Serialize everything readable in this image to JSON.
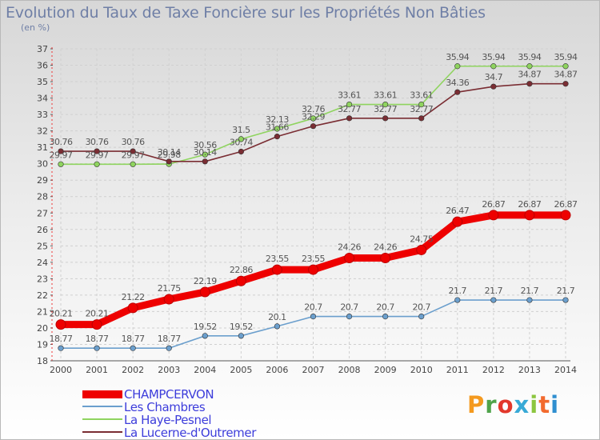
{
  "title": "Evolution du Taux de Taxe Foncière sur les Propriétés Non Bâties",
  "subtitle": "(en %)",
  "brand": {
    "text": "Proxiti",
    "letter_colors": [
      "#f49a1f",
      "#4fa34a",
      "#e2372b",
      "#38a9d6",
      "#8cc63f",
      "#f26a2e",
      "#2f8fd0"
    ]
  },
  "legend": {
    "items": [
      {
        "label": "CHAMPCERVON",
        "color": "#ee0000"
      },
      {
        "label": "Les Chambres",
        "color": "#6b9fcd"
      },
      {
        "label": "La Haye-Pesnel",
        "color": "#8fd45f"
      },
      {
        "label": "La Lucerne-d'Outremer",
        "color": "#7a2d33"
      }
    ]
  },
  "chart_data": {
    "type": "line",
    "x": [
      "2000",
      "2001",
      "2002",
      "2003",
      "2004",
      "2005",
      "2006",
      "2007",
      "2008",
      "2009",
      "2010",
      "2011",
      "2012",
      "2013",
      "2014"
    ],
    "ylim": [
      18,
      37
    ],
    "yticks": [
      18,
      19,
      20,
      21,
      22,
      23,
      24,
      25,
      26,
      27,
      28,
      29,
      30,
      31,
      32,
      33,
      34,
      35,
      36,
      37
    ],
    "grid": true,
    "series": [
      {
        "name": "CHAMPCERVON",
        "color": "#ee0000",
        "labels": [
          "20.21",
          "20.21",
          "21.22",
          "21.75",
          "22.19",
          "22.86",
          "23.55",
          "23.55",
          "24.26",
          "24.26",
          "24.75",
          "26.47",
          "26.87",
          "26.87",
          "26.87"
        ],
        "values": [
          20.21,
          20.21,
          21.22,
          21.75,
          22.19,
          22.86,
          23.55,
          23.55,
          24.26,
          24.26,
          24.75,
          26.47,
          26.87,
          26.87,
          26.87
        ]
      },
      {
        "name": "Les Chambres",
        "color": "#6b9fcd",
        "labels": [
          "18.77",
          "18.77",
          "18.77",
          "18.77",
          "19.52",
          "19.52",
          "20.1",
          "20.7",
          "20.7",
          "20.7",
          "20.7",
          "21.7",
          "21.7",
          "21.7",
          "21.7"
        ],
        "values": [
          18.77,
          18.77,
          18.77,
          18.77,
          19.52,
          19.52,
          20.1,
          20.7,
          20.7,
          20.7,
          20.7,
          21.7,
          21.7,
          21.7,
          21.7
        ]
      },
      {
        "name": "La Haye-Pesnel",
        "color": "#8fd45f",
        "labels": [
          "29.97",
          "29.97",
          "29.97",
          "29.98",
          "30.56",
          "31.5",
          "32.13",
          "32.76",
          "33.61",
          "33.61",
          "33.61",
          "35.94",
          "35.94",
          "35.94",
          "35.94"
        ],
        "values": [
          29.97,
          29.97,
          29.97,
          29.98,
          30.56,
          31.5,
          32.13,
          32.76,
          33.61,
          33.61,
          33.61,
          35.94,
          35.94,
          35.94,
          35.94
        ]
      },
      {
        "name": "La Lucerne-d'Outremer",
        "color": "#7a2d33",
        "labels": [
          "30.76",
          "30.76",
          "30.76",
          "30.14",
          "30.14",
          "30.74",
          "31.66",
          "32.29",
          "32.77",
          "32.77",
          "32.77",
          "34.36",
          "34.7",
          "34.87",
          "34.87"
        ],
        "values": [
          30.76,
          30.76,
          30.76,
          30.14,
          30.14,
          30.74,
          31.66,
          32.29,
          32.77,
          32.77,
          32.77,
          34.36,
          34.7,
          34.87,
          34.87
        ]
      }
    ]
  }
}
